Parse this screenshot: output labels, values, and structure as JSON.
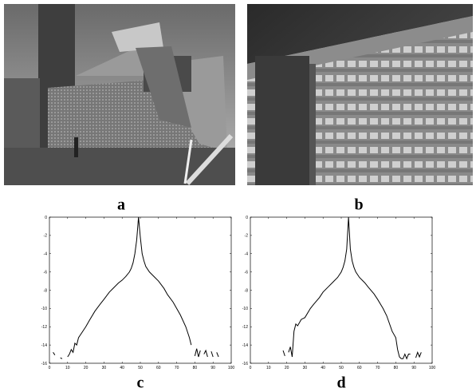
{
  "panel_labels": [
    "a",
    "b",
    "c",
    "d"
  ],
  "chart_data": [
    {
      "type": "line",
      "x": [
        2,
        3,
        4,
        6,
        7,
        8,
        10,
        11,
        12,
        13,
        14,
        15,
        16,
        18,
        20,
        22,
        25,
        28,
        30,
        33,
        35,
        38,
        40,
        42,
        44,
        45,
        46,
        47,
        48,
        49,
        50,
        51,
        52,
        53,
        55,
        58,
        60,
        63,
        65,
        68,
        70,
        72,
        75,
        77,
        78,
        79,
        80,
        81,
        82,
        83,
        84,
        85,
        86,
        87,
        88,
        89,
        90,
        91,
        92,
        93
      ],
      "values": [
        -14.8,
        -15.1,
        null,
        -15.4,
        -15.5,
        null,
        -15.3,
        -15.0,
        -14.5,
        -14.8,
        -13.8,
        -14.0,
        -13.2,
        -12.6,
        -12.0,
        -11.3,
        -10.3,
        -9.5,
        -9.0,
        -8.2,
        -7.8,
        -7.2,
        -6.9,
        -6.5,
        -6.0,
        -5.6,
        -5.0,
        -4.0,
        -2.5,
        0,
        -2.2,
        -4.0,
        -4.8,
        -5.4,
        -6.0,
        -6.6,
        -7.0,
        -7.8,
        -8.5,
        -9.3,
        -10.0,
        -10.7,
        -12.0,
        -13.2,
        -14.0,
        null,
        -15.2,
        -14.4,
        -15.3,
        -14.6,
        null,
        -15.0,
        -14.6,
        -15.3,
        null,
        -14.7,
        -15.3,
        null,
        -14.8,
        -15.3
      ],
      "color": "#000000",
      "xlim": [
        0,
        100
      ],
      "xticks": [
        0,
        10,
        20,
        30,
        40,
        50,
        60,
        70,
        80,
        90,
        100
      ],
      "ylim": [
        -16,
        0
      ],
      "yticks": [
        0,
        -2,
        -4,
        -6,
        -8,
        -10,
        -12,
        -14,
        -16
      ]
    },
    {
      "type": "line",
      "x": [
        18,
        19,
        20,
        21,
        22,
        23,
        24,
        25,
        26,
        28,
        30,
        33,
        35,
        38,
        40,
        43,
        45,
        48,
        50,
        51,
        52,
        53,
        54,
        55,
        56,
        57,
        58,
        60,
        63,
        65,
        68,
        70,
        73,
        75,
        78,
        80,
        81,
        82,
        83,
        84,
        85,
        86,
        87,
        88,
        89,
        91,
        92,
        93,
        94
      ],
      "values": [
        -14.6,
        -15.2,
        null,
        -14.8,
        -14.2,
        -15.3,
        -12.5,
        -11.7,
        -11.9,
        -11.2,
        -11,
        -10,
        -9.5,
        -8.8,
        -8.2,
        -7.6,
        -7.2,
        -6.6,
        -6,
        -5.5,
        -4.8,
        -3.5,
        0,
        -3.5,
        -4.8,
        -5.5,
        -6,
        -6.6,
        -7.2,
        -7.7,
        -8.4,
        -9,
        -10,
        -10.8,
        -12.5,
        -13.2,
        -14.5,
        -15.3,
        -15.5,
        -15.5,
        -15,
        -15.5,
        -15,
        -15,
        null,
        -15.4,
        -14.8,
        -15.3,
        -14.8
      ],
      "color": "#000000",
      "xlim": [
        0,
        100
      ],
      "xticks": [
        0,
        10,
        20,
        30,
        40,
        50,
        60,
        70,
        80,
        90,
        100
      ],
      "ylim": [
        -16,
        0
      ],
      "yticks": [
        0,
        -2,
        -4,
        -6,
        -8,
        -10,
        -12,
        -14,
        -16
      ]
    }
  ]
}
